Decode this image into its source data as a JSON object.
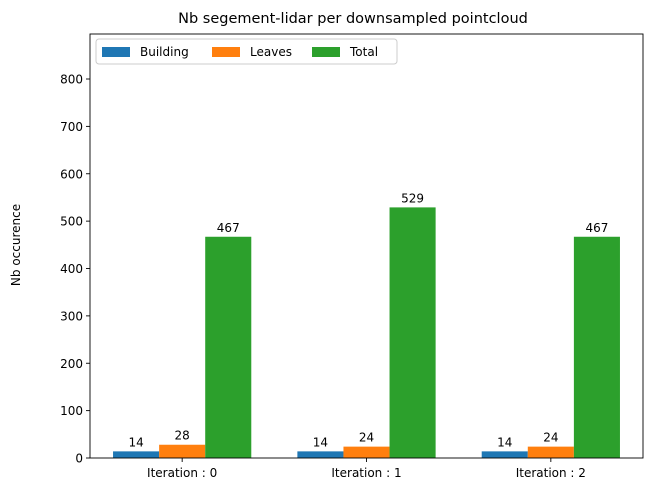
{
  "chart_data": {
    "type": "bar",
    "title": "Nb segement-lidar per downsampled pointcloud",
    "xlabel": "",
    "ylabel": "Nb occurence",
    "categories": [
      "Iteration : 0",
      "Iteration : 1",
      "Iteration : 2"
    ],
    "series": [
      {
        "name": "Building",
        "color": "#1f77b4",
        "values": [
          14,
          14,
          14
        ]
      },
      {
        "name": "Leaves",
        "color": "#ff7f0e",
        "values": [
          28,
          24,
          24
        ]
      },
      {
        "name": "Total",
        "color": "#2ca02c",
        "values": [
          467,
          529,
          467
        ]
      }
    ],
    "ylim": [
      0,
      895
    ],
    "yticks": [
      0,
      100,
      200,
      300,
      400,
      500,
      600,
      700,
      800
    ],
    "grid": false,
    "legend": "top-left",
    "data_labels": true
  }
}
